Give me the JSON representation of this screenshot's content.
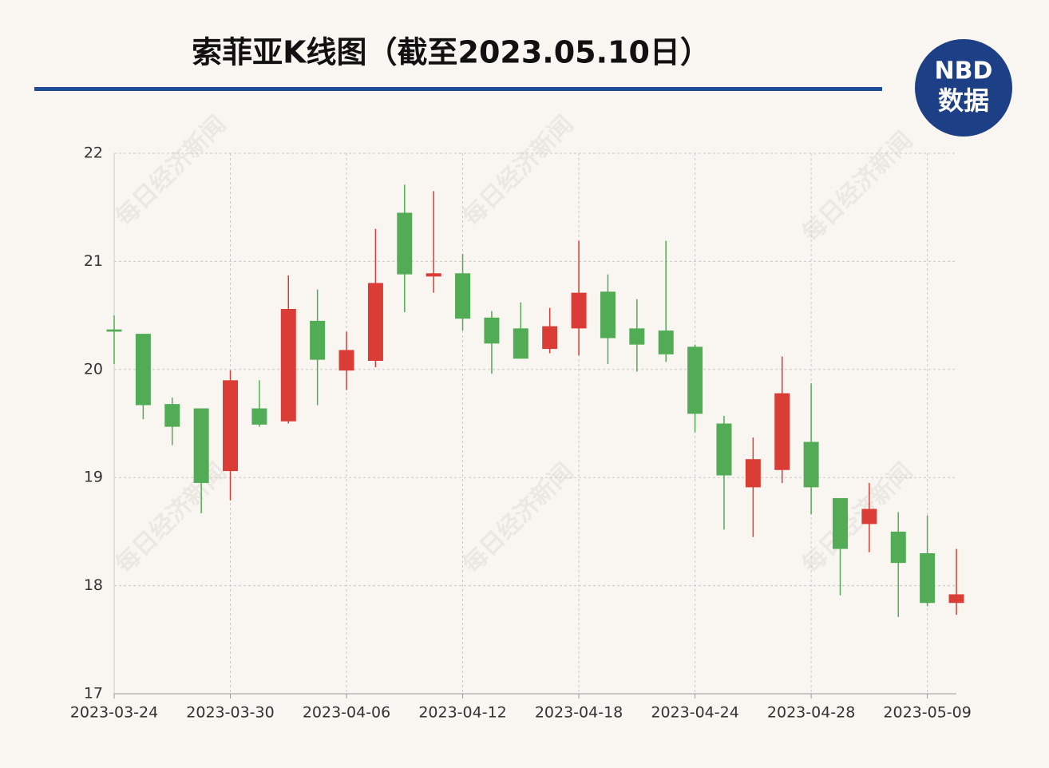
{
  "chart_data": {
    "type": "candlestick",
    "title": "索菲亚K线图（截至2023.05.10日）",
    "logo": {
      "top": "NBD",
      "bottom": "数据"
    },
    "watermark": "每日经济新闻",
    "categories": [
      "2023-03-24",
      null,
      null,
      null,
      "2023-03-30",
      null,
      null,
      null,
      "2023-04-06",
      null,
      null,
      null,
      "2023-04-12",
      null,
      null,
      null,
      "2023-04-18",
      null,
      null,
      null,
      "2023-04-24",
      null,
      null,
      null,
      "2023-04-28",
      null,
      null,
      null,
      "2023-05-09",
      null
    ],
    "open": [
      20.37,
      20.33,
      19.68,
      19.64,
      19.06,
      19.64,
      19.52,
      20.45,
      19.99,
      20.08,
      21.45,
      20.86,
      20.89,
      20.48,
      20.38,
      20.19,
      20.38,
      20.72,
      20.38,
      20.36,
      20.21,
      19.5,
      18.91,
      19.07,
      19.33,
      18.81,
      18.57,
      18.5,
      18.3,
      17.84
    ],
    "high": [
      20.5,
      20.33,
      19.74,
      19.64,
      19.99,
      19.9,
      20.87,
      20.74,
      20.35,
      21.3,
      21.71,
      21.65,
      21.07,
      20.54,
      20.62,
      20.57,
      21.19,
      20.88,
      20.65,
      21.19,
      20.23,
      19.57,
      19.37,
      20.12,
      19.87,
      18.81,
      18.95,
      18.68,
      18.65,
      18.34
    ],
    "low": [
      20.05,
      19.54,
      19.3,
      18.67,
      18.79,
      19.47,
      19.5,
      19.67,
      19.81,
      20.02,
      20.53,
      20.71,
      20.36,
      19.96,
      20.1,
      20.15,
      20.13,
      20.05,
      19.98,
      20.07,
      19.42,
      18.52,
      18.45,
      18.95,
      18.66,
      17.91,
      18.31,
      17.71,
      17.81,
      17.73
    ],
    "close": [
      20.35,
      19.67,
      19.47,
      18.95,
      19.9,
      19.49,
      20.56,
      20.09,
      20.18,
      20.8,
      20.88,
      20.89,
      20.47,
      20.24,
      20.1,
      20.4,
      20.71,
      20.29,
      20.23,
      20.14,
      19.59,
      19.02,
      19.17,
      19.78,
      18.91,
      18.34,
      18.71,
      18.21,
      17.84,
      17.92
    ],
    "up_color": "#da3d36",
    "down_color": "#52ab55",
    "ylim": [
      17,
      22
    ],
    "yticks": [
      17,
      18,
      19,
      20,
      21,
      22
    ],
    "grid": true
  }
}
